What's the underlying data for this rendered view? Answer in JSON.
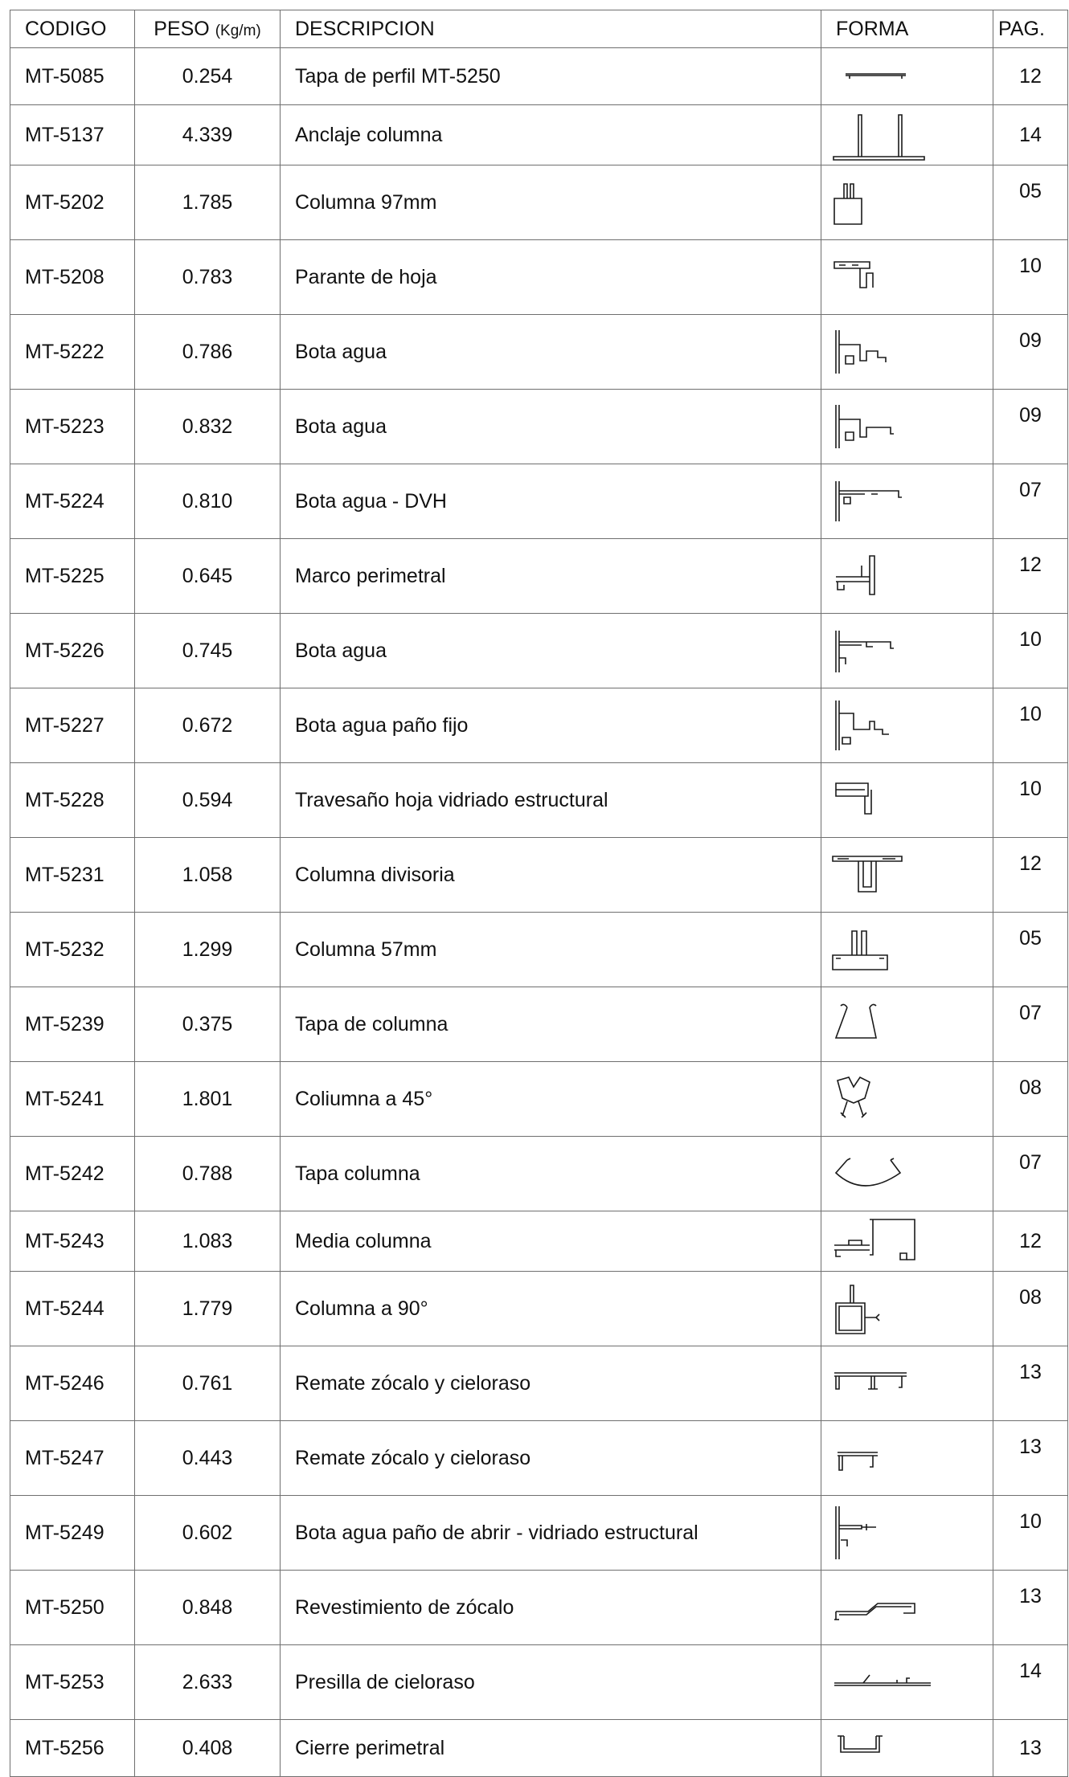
{
  "headers": {
    "codigo": "CODIGO",
    "peso": "PESO",
    "peso_unit": "(Kg/m)",
    "descripcion": "DESCRIPCION",
    "forma": "FORMA",
    "pag": "PAG."
  },
  "rows": [
    {
      "codigo": "MT-5085",
      "peso": "0.254",
      "descripcion": "Tapa de perfil MT-5250",
      "pag": "12",
      "shape": "tapa-perfil-shape"
    },
    {
      "codigo": "MT-5137",
      "peso": "4.339",
      "descripcion": "Anclaje columna",
      "pag": "14",
      "shape": "anclaje-columna-shape"
    },
    {
      "codigo": "MT-5202",
      "peso": "1.785",
      "descripcion": "Columna 97mm",
      "pag": "05",
      "shape": "columna-97mm-shape"
    },
    {
      "codigo": "MT-5208",
      "peso": "0.783",
      "descripcion": "Parante de hoja",
      "pag": "10",
      "shape": "parante-hoja-shape"
    },
    {
      "codigo": "MT-5222",
      "peso": "0.786",
      "descripcion": "Bota agua",
      "pag": "09",
      "shape": "bota-agua-shape"
    },
    {
      "codigo": "MT-5223",
      "peso": "0.832",
      "descripcion": "Bota agua",
      "pag": "09",
      "shape": "bota-agua-shape"
    },
    {
      "codigo": "MT-5224",
      "peso": "0.810",
      "descripcion": "Bota agua - DVH",
      "pag": "07",
      "shape": "bota-agua-dvh-shape"
    },
    {
      "codigo": "MT-5225",
      "peso": "0.645",
      "descripcion": "Marco perimetral",
      "pag": "12",
      "shape": "marco-perimetral-shape"
    },
    {
      "codigo": "MT-5226",
      "peso": "0.745",
      "descripcion": "Bota agua",
      "pag": "10",
      "shape": "bota-agua-shape"
    },
    {
      "codigo": "MT-5227",
      "peso": "0.672",
      "descripcion": "Bota agua paño fijo",
      "pag": "10",
      "shape": "bota-agua-fijo-shape"
    },
    {
      "codigo": "MT-5228",
      "peso": "0.594",
      "descripcion": "Travesaño hoja vidriado estructural",
      "pag": "10",
      "shape": "travesano-shape"
    },
    {
      "codigo": "MT-5231",
      "peso": "1.058",
      "descripcion": "Columna divisoria",
      "pag": "12",
      "shape": "columna-divisoria-shape"
    },
    {
      "codigo": "MT-5232",
      "peso": "1.299",
      "descripcion": "Columna 57mm",
      "pag": "05",
      "shape": "columna-57mm-shape"
    },
    {
      "codigo": "MT-5239",
      "peso": "0.375",
      "descripcion": "Tapa de columna",
      "pag": "07",
      "shape": "tapa-columna-shape"
    },
    {
      "codigo": "MT-5241",
      "peso": "1.801",
      "descripcion": "Coliumna a 45°",
      "pag": "08",
      "shape": "columna-45-shape"
    },
    {
      "codigo": "MT-5242",
      "peso": "0.788",
      "descripcion": "Tapa columna",
      "pag": "07",
      "shape": "tapa-columna-curva-shape"
    },
    {
      "codigo": "MT-5243",
      "peso": "1.083",
      "descripcion": "Media columna",
      "pag": "12",
      "shape": "media-columna-shape"
    },
    {
      "codigo": "MT-5244",
      "peso": "1.779",
      "descripcion": "Columna a 90°",
      "pag": "08",
      "shape": "columna-90-shape"
    },
    {
      "codigo": "MT-5246",
      "peso": "0.761",
      "descripcion": "Remate zócalo y cieloraso",
      "pag": "13",
      "shape": "remate-zocalo-shape"
    },
    {
      "codigo": "MT-5247",
      "peso": "0.443",
      "descripcion": "Remate zócalo y cieloraso",
      "pag": "13",
      "shape": "remate-zocalo-corto-shape"
    },
    {
      "codigo": "MT-5249",
      "peso": "0.602",
      "descripcion": "Bota agua paño de abrir - vidriado estructural",
      "pag": "10",
      "shape": "bota-agua-abrir-shape"
    },
    {
      "codigo": "MT-5250",
      "peso": "0.848",
      "descripcion": "Revestimiento de zócalo",
      "pag": "13",
      "shape": "revestimiento-zocalo-shape"
    },
    {
      "codigo": "MT-5253",
      "peso": "2.633",
      "descripcion": "Presilla de cieloraso",
      "pag": "14",
      "shape": "presilla-cieloraso-shape"
    },
    {
      "codigo": "MT-5256",
      "peso": "0.408",
      "descripcion": "Cierre perimetral",
      "pag": "13",
      "shape": "cierre-perimetral-shape"
    }
  ]
}
